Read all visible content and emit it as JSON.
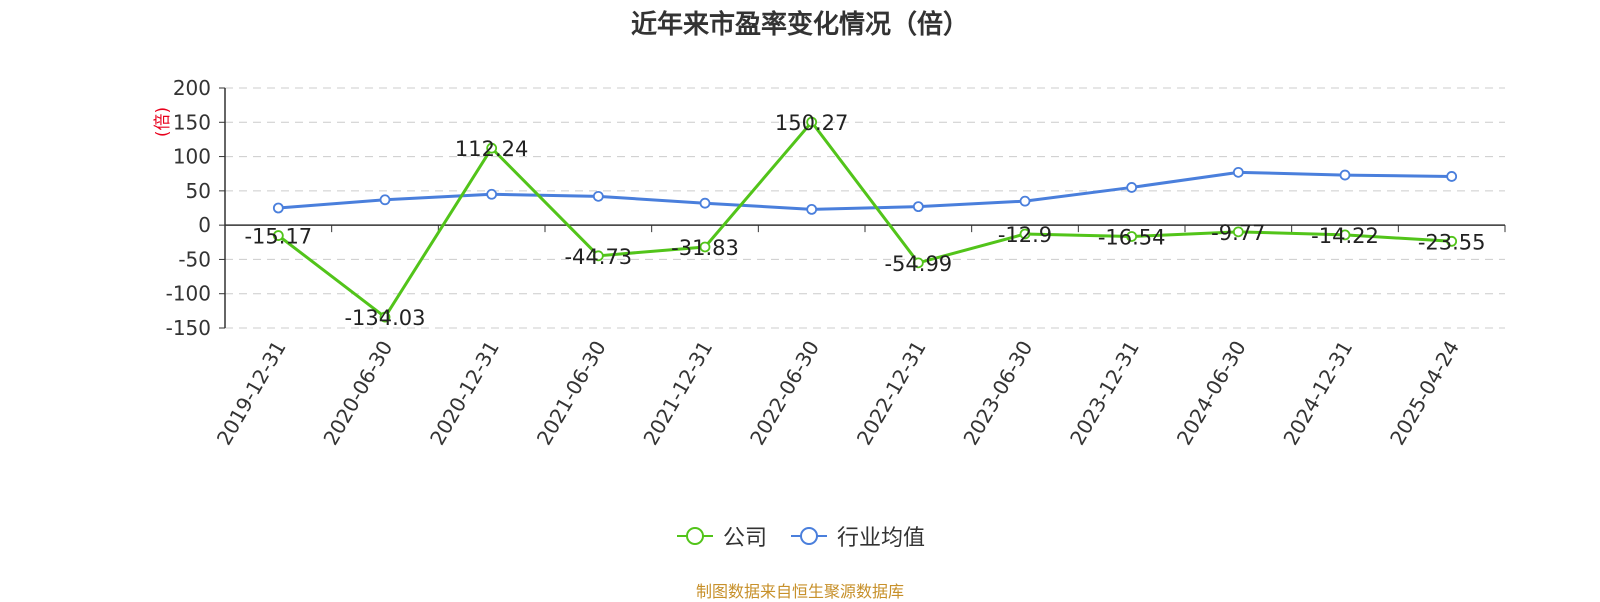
{
  "chart_data": {
    "type": "line",
    "title": "近年来市盈率变化情况（倍）",
    "ylabel": "(倍)",
    "xlabel": "",
    "categories": [
      "2019-12-31",
      "2020-06-30",
      "2020-12-31",
      "2021-06-30",
      "2021-12-31",
      "2022-06-30",
      "2022-12-31",
      "2023-06-30",
      "2023-12-31",
      "2024-06-30",
      "2024-12-31",
      "2025-04-24"
    ],
    "series": [
      {
        "name": "公司",
        "color": "#52c41a",
        "values": [
          -15.17,
          -134.03,
          112.24,
          -44.73,
          -31.83,
          150.27,
          -54.99,
          -12.9,
          -16.54,
          -9.77,
          -14.22,
          -23.55
        ],
        "labels": [
          "-15.17",
          "-134.03",
          "112.24",
          "-44.73",
          "-31.83",
          "150.27",
          "-54.99",
          "-12.9",
          "-16.54",
          "-9.77",
          "-14.22",
          "-23.55"
        ]
      },
      {
        "name": "行业均值",
        "color": "#4a7fdc",
        "values": [
          25,
          37,
          45,
          42,
          32,
          23,
          27,
          35,
          55,
          77,
          73,
          71
        ]
      }
    ],
    "ylim": [
      -150,
      200
    ],
    "yticks": [
      "200",
      "150",
      "100",
      "50",
      "0",
      "-50",
      "-100",
      "-150"
    ],
    "grid": true,
    "legend_position": "bottom"
  },
  "footer": {
    "source": "制图数据来自恒生聚源数据库"
  }
}
